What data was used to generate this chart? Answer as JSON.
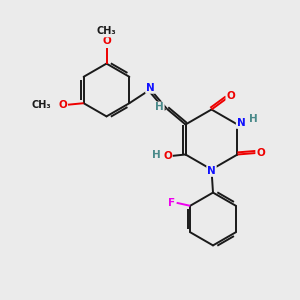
{
  "bg_color": "#ebebeb",
  "bond_color": "#1a1a1a",
  "bond_width": 1.4,
  "atom_colors": {
    "N": "#1010ff",
    "O": "#ee0000",
    "F": "#ee00ee",
    "H": "#4a8a8a"
  },
  "font_size": 7.5
}
